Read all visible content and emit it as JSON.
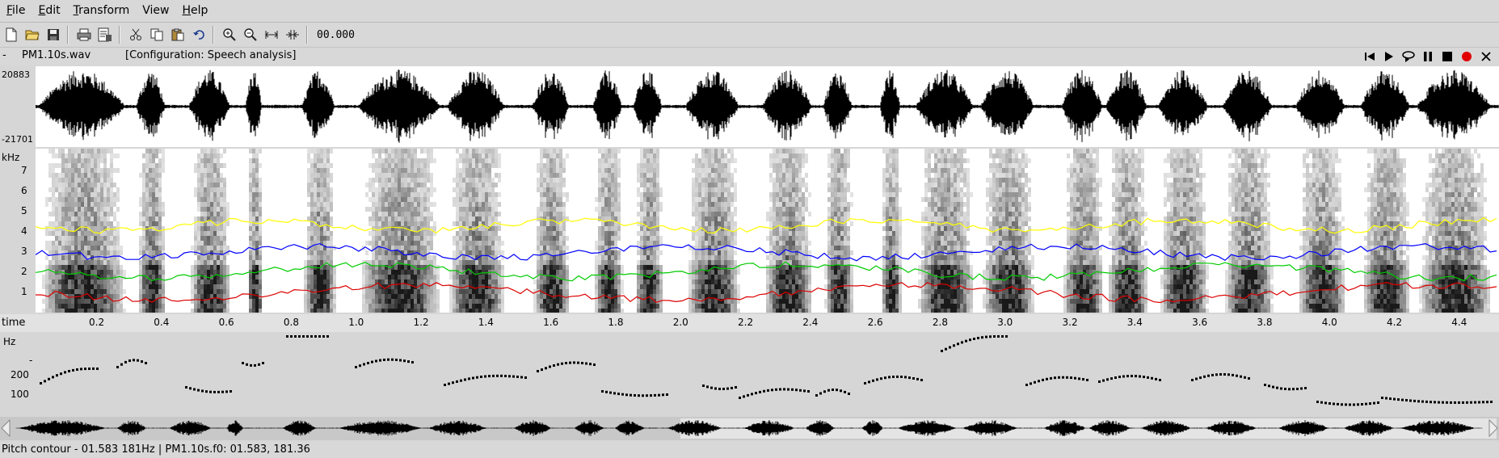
{
  "menu": [
    {
      "label": "File",
      "u": "F",
      "rest": "ile"
    },
    {
      "label": "Edit",
      "u": "E",
      "rest": "dit"
    },
    {
      "label": "Transform",
      "u": "T",
      "rest": "ransform"
    },
    {
      "label": "View",
      "u": "",
      "rest": "View"
    },
    {
      "label": "Help",
      "u": "H",
      "rest": "elp"
    }
  ],
  "toolbar": {
    "time": "00.000",
    "icons": [
      "new-file-icon",
      "open-folder-icon",
      "save-disk-icon",
      "print-icon",
      "properties-icon",
      "cut-icon",
      "copy-icon",
      "paste-icon",
      "undo-icon",
      "zoom-in-icon",
      "zoom-out-icon",
      "zoom-fit-icon",
      "zoom-selection-icon"
    ]
  },
  "file": {
    "dash": "-",
    "name": "PM1.10s.wav",
    "config": "[Configuration: Speech analysis]"
  },
  "waveform": {
    "ymax": "20883",
    "ymin": "-21701"
  },
  "spectrogram": {
    "unit": "kHz",
    "ticks": [
      "7",
      "6",
      "5",
      "4",
      "3",
      "2",
      "1"
    ],
    "formant_colors": [
      "#ffff00",
      "#0000ff",
      "#00cc00",
      "#dd0000"
    ]
  },
  "time_axis": {
    "label": "time",
    "ticks": [
      "0.2",
      "0.4",
      "0.6",
      "0.8",
      "1.0",
      "1.2",
      "1.4",
      "1.6",
      "1.8",
      "2.0",
      "2.2",
      "2.4",
      "2.6",
      "2.8",
      "3.0",
      "3.2",
      "3.4",
      "3.6",
      "3.8",
      "4.0",
      "4.2",
      "4.4"
    ]
  },
  "pitch": {
    "unit": "Hz",
    "ticks": [
      "-",
      "200",
      "100"
    ]
  },
  "status": {
    "text": "Pitch contour - 01.583 181Hz  | PM1.10s.f0: 01.583, 181.36"
  }
}
